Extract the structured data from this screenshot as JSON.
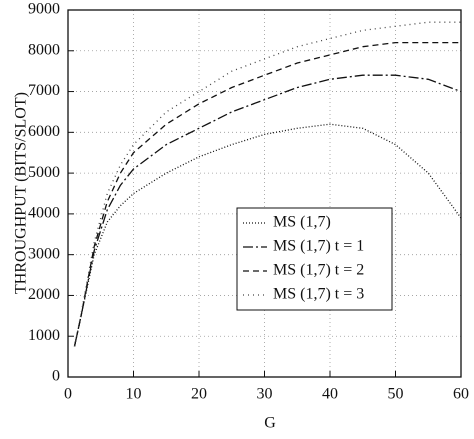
{
  "chart_data": {
    "type": "line",
    "x_label": "G",
    "y_label": "THROUGHPUT (BITS/SLOT)",
    "x": [
      1,
      2,
      4,
      6,
      8,
      10,
      15,
      20,
      25,
      30,
      35,
      40,
      45,
      50,
      55,
      60
    ],
    "series": [
      {
        "name": "MS (1,7)",
        "color": "#111111",
        "dash": "1,2",
        "values": [
          750,
          1500,
          3000,
          3800,
          4200,
          4500,
          5000,
          5400,
          5700,
          5950,
          6100,
          6200,
          6100,
          5700,
          5000,
          3900
        ]
      },
      {
        "name": "MS (1,7) t = 1",
        "color": "#111111",
        "dash": "10,3,2,3",
        "values": [
          750,
          1500,
          3100,
          4100,
          4700,
          5100,
          5700,
          6100,
          6500,
          6800,
          7100,
          7300,
          7400,
          7400,
          7300,
          7000
        ]
      },
      {
        "name": "MS (1,7) t = 2",
        "color": "#111111",
        "dash": "6,4",
        "values": [
          750,
          1500,
          3200,
          4300,
          5000,
          5500,
          6200,
          6700,
          7100,
          7400,
          7700,
          7900,
          8100,
          8200,
          8200,
          8200
        ]
      },
      {
        "name": "MS (1,7) t = 3",
        "color": "#444444",
        "dash": "1,4",
        "values": [
          750,
          1550,
          3300,
          4500,
          5200,
          5700,
          6500,
          7000,
          7500,
          7800,
          8100,
          8300,
          8500,
          8600,
          8700,
          8700
        ]
      }
    ],
    "xlim": [
      0,
      60
    ],
    "xticks": [
      0,
      10,
      20,
      30,
      40,
      50,
      60
    ],
    "ylim": [
      0,
      9000
    ],
    "yticks": [
      0,
      1000,
      2000,
      3000,
      4000,
      5000,
      6000,
      7000,
      8000,
      9000
    ],
    "grid": true,
    "legend": "lower right"
  }
}
